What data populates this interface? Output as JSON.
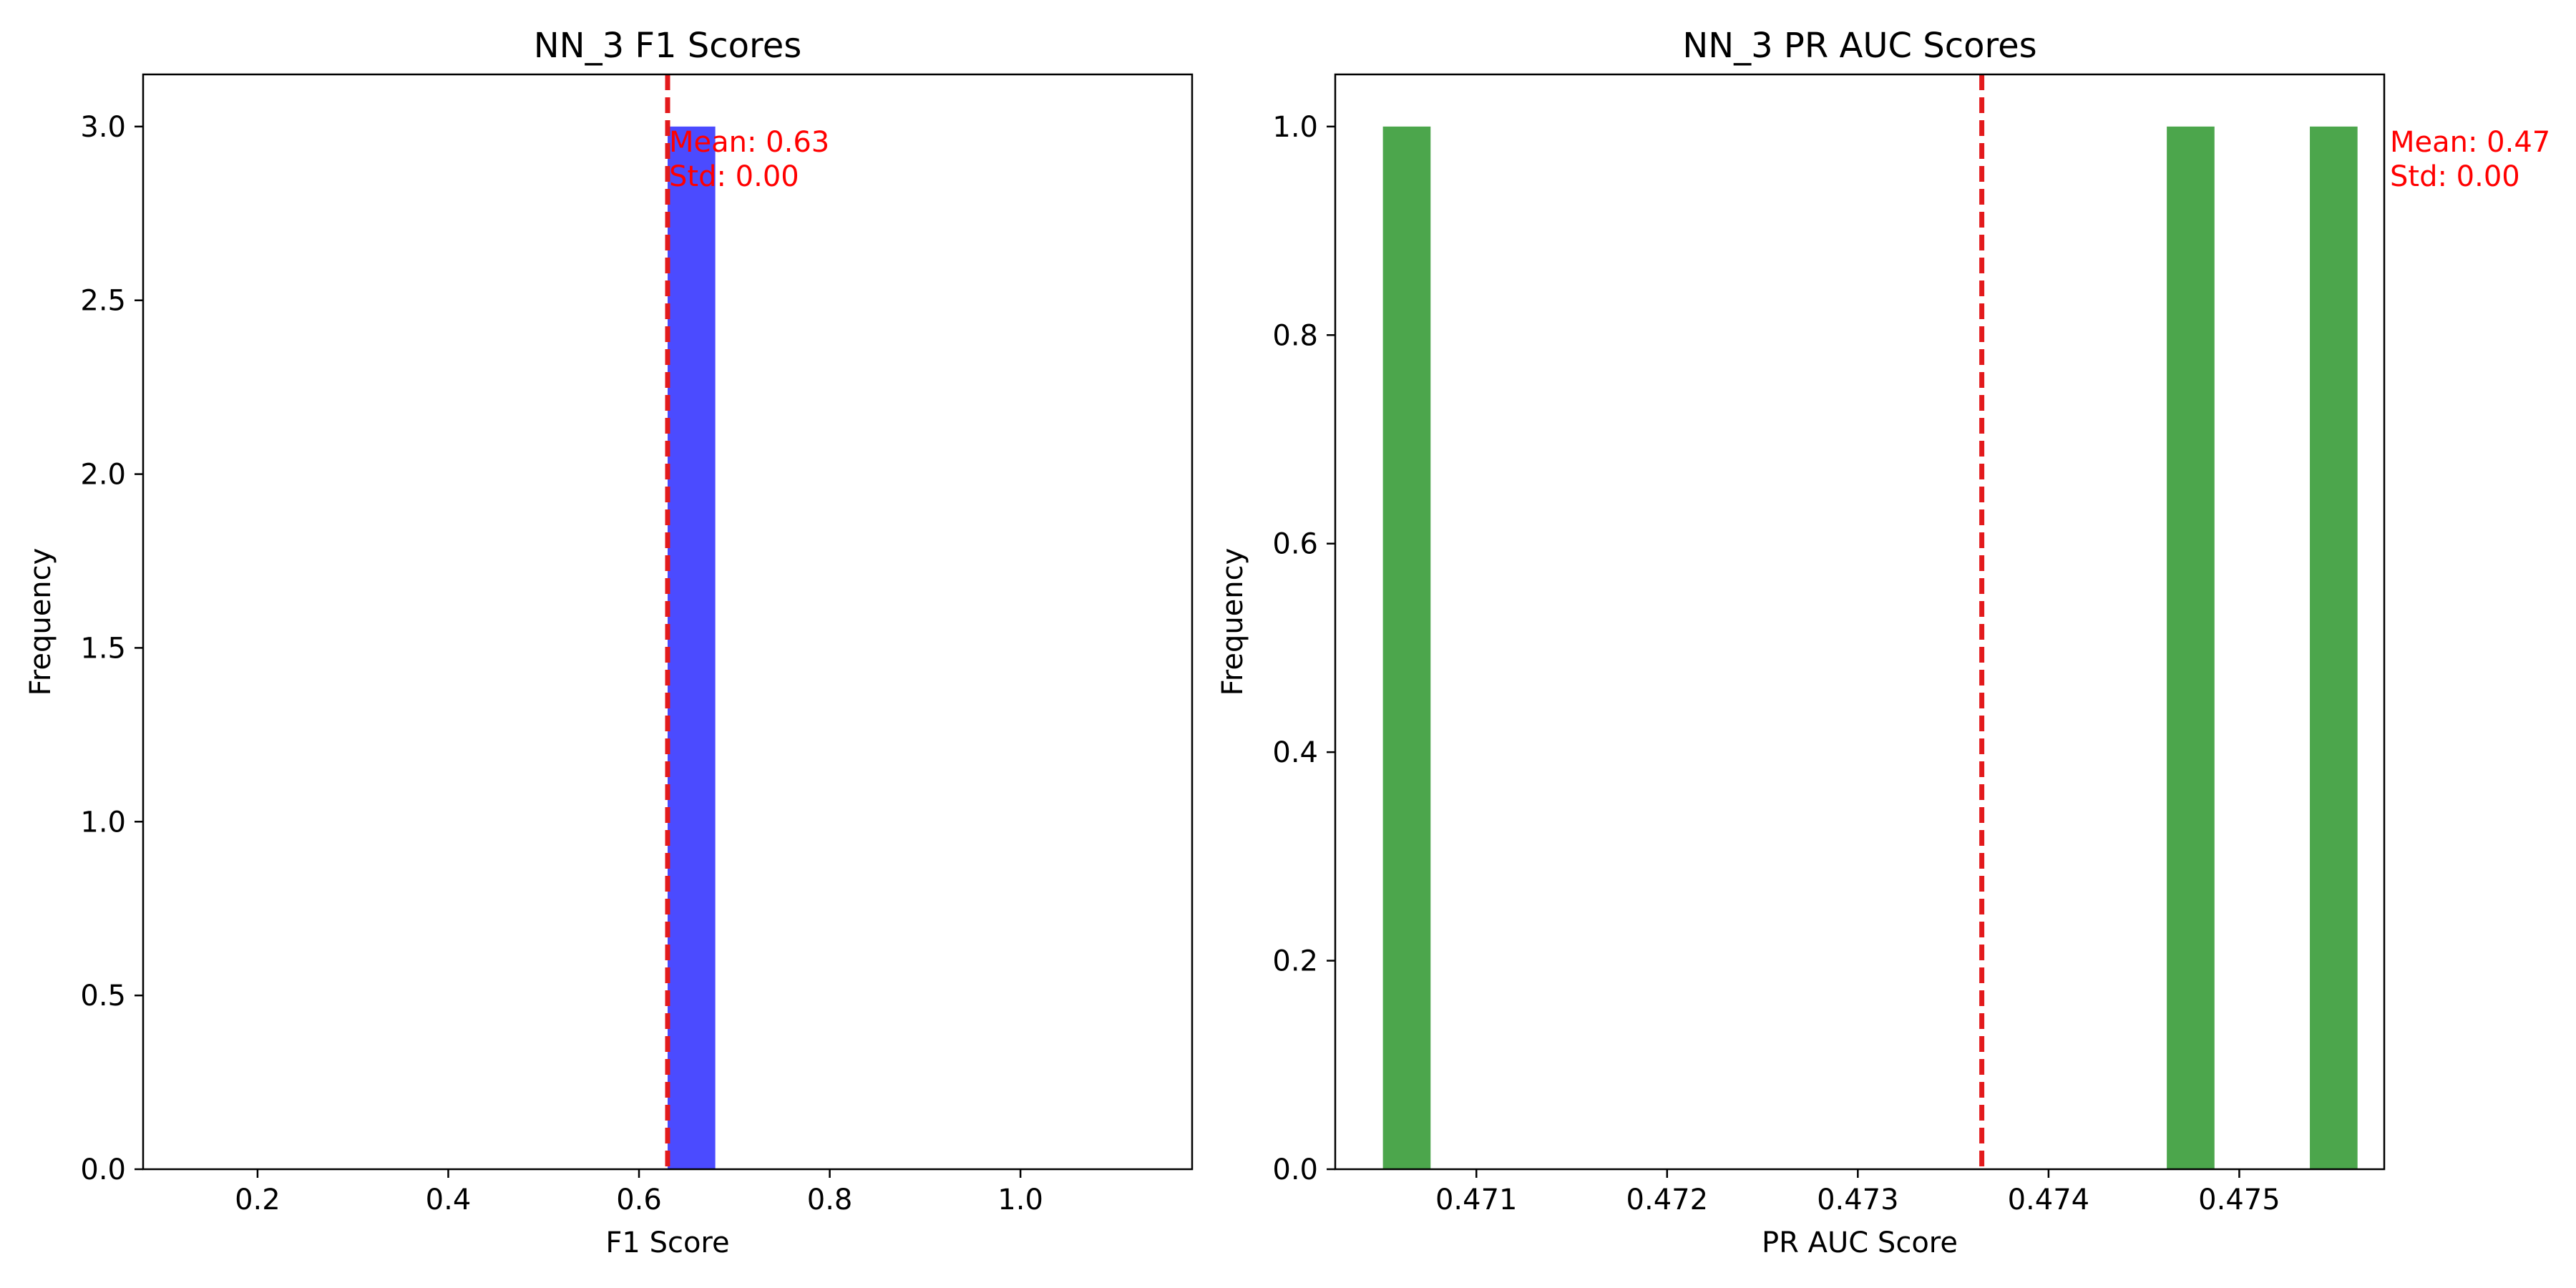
{
  "chart_data": [
    {
      "type": "bar",
      "title": "NN_3 F1 Scores",
      "xlabel": "F1 Score",
      "ylabel": "Frequency",
      "xlim": [
        0.08,
        1.18
      ],
      "ylim": [
        0,
        3.15
      ],
      "xticks": [
        0.2,
        0.4,
        0.6,
        0.8,
        1.0
      ],
      "xtick_labels": [
        "0.2",
        "0.4",
        "0.6",
        "0.8",
        "1.0"
      ],
      "yticks": [
        0.0,
        0.5,
        1.0,
        1.5,
        2.0,
        2.5,
        3.0
      ],
      "ytick_labels": [
        "0.0",
        "0.5",
        "1.0",
        "1.5",
        "2.0",
        "2.5",
        "3.0"
      ],
      "bars": [
        {
          "x0": 0.63,
          "x1": 0.68,
          "count": 3
        }
      ],
      "bar_color": "#4b4bff",
      "mean_line": {
        "x": 0.63,
        "color": "#e31a1c"
      },
      "annotation": {
        "lines": [
          "Mean: 0.63",
          "Std: 0.00"
        ],
        "color": "#ff0000"
      },
      "grid": false,
      "legend": "none"
    },
    {
      "type": "bar",
      "title": "NN_3 PR AUC Scores",
      "xlabel": "PR AUC Score",
      "ylabel": "Frequency",
      "xlim": [
        0.47026,
        0.47576
      ],
      "ylim": [
        0,
        1.05
      ],
      "xticks": [
        0.471,
        0.472,
        0.473,
        0.474,
        0.475
      ],
      "xtick_labels": [
        "0.471",
        "0.472",
        "0.473",
        "0.474",
        "0.475"
      ],
      "yticks": [
        0.0,
        0.2,
        0.4,
        0.6,
        0.8,
        1.0
      ],
      "ytick_labels": [
        "0.0",
        "0.2",
        "0.4",
        "0.6",
        "0.8",
        "1.0"
      ],
      "bars": [
        {
          "x0": 0.47051,
          "x1": 0.47076,
          "count": 1
        },
        {
          "x0": 0.47462,
          "x1": 0.47487,
          "count": 1
        },
        {
          "x0": 0.47537,
          "x1": 0.47562,
          "count": 1
        }
      ],
      "bar_color": "#4ca64c",
      "mean_line": {
        "x": 0.47365,
        "color": "#e31a1c"
      },
      "annotation": {
        "lines": [
          "Mean: 0.47",
          "Std: 0.00"
        ],
        "color": "#ff0000"
      },
      "grid": false,
      "legend": "none"
    }
  ]
}
